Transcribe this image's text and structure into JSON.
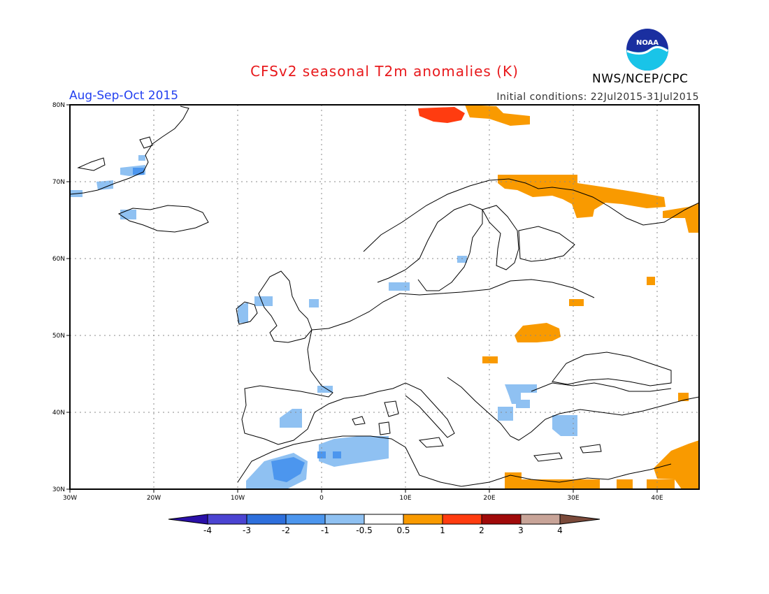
{
  "header": {
    "title": "CFSv2 seasonal T2m anomalies (K)",
    "period": "Aug-Sep-Oct 2015",
    "initial_conditions": "Initial conditions: 22Jul2015-31Jul2015",
    "agency": "NWS/NCEP/CPC",
    "logo_text": "NOAA"
  },
  "map": {
    "lon_range": [
      -30,
      45
    ],
    "lat_range": [
      30,
      80
    ],
    "lat_labels": [
      "80N",
      "70N",
      "60N",
      "50N",
      "40N",
      "30N"
    ],
    "lon_labels": [
      "30W",
      "20W",
      "10W",
      "0",
      "10E",
      "20E",
      "30E",
      "40E"
    ]
  },
  "colorbar": {
    "labels": [
      "-4",
      "-3",
      "-2",
      "-1",
      "-0.5",
      "0.5",
      "1",
      "2",
      "3",
      "4"
    ],
    "colors": [
      "#2a10a8",
      "#4b44d2",
      "#2e6fdc",
      "#4c96ee",
      "#8fc1f2",
      "#ffffff",
      "#f99a00",
      "#ff3c10",
      "#a00a0a",
      "#c8a498",
      "#7b4a3a"
    ]
  },
  "anomaly_regions": [
    {
      "name": "Svalbard",
      "category": "2",
      "color": "#ff3c10"
    },
    {
      "name": "Svalbard east",
      "category": "1",
      "color": "#f99a00"
    },
    {
      "name": "Kola / Barents",
      "category": "1",
      "color": "#f99a00"
    },
    {
      "name": "NW Russia",
      "category": "1",
      "color": "#f99a00"
    },
    {
      "name": "Ukraine / Belarus",
      "category": "1",
      "color": "#f99a00"
    },
    {
      "name": "Hungary",
      "category": "1",
      "color": "#f99a00"
    },
    {
      "name": "Levant",
      "category": "1",
      "color": "#f99a00"
    },
    {
      "name": "Libya / Egypt coast",
      "category": "1",
      "color": "#f99a00"
    },
    {
      "name": "Greenland east coast",
      "category": "-1",
      "color": "#8fc1f2"
    },
    {
      "name": "Greenland coast deeper",
      "category": "-2",
      "color": "#4c96ee"
    },
    {
      "name": "Iceland NW",
      "category": "-1",
      "color": "#8fc1f2"
    },
    {
      "name": "Ireland west",
      "category": "-1",
      "color": "#8fc1f2"
    },
    {
      "name": "Denmark",
      "category": "-1",
      "color": "#8fc1f2"
    },
    {
      "name": "Gotland",
      "category": "-1",
      "color": "#8fc1f2"
    },
    {
      "name": "Spain south",
      "category": "-1",
      "color": "#8fc1f2"
    },
    {
      "name": "Pyrenees",
      "category": "-1",
      "color": "#8fc1f2"
    },
    {
      "name": "Balkans",
      "category": "-1",
      "color": "#8fc1f2"
    },
    {
      "name": "Aegean / Turkey",
      "category": "-1",
      "color": "#8fc1f2"
    },
    {
      "name": "Algeria / Tunisia",
      "category": "-1",
      "color": "#8fc1f2"
    },
    {
      "name": "Morocco",
      "category": "-2",
      "color": "#4c96ee"
    }
  ]
}
